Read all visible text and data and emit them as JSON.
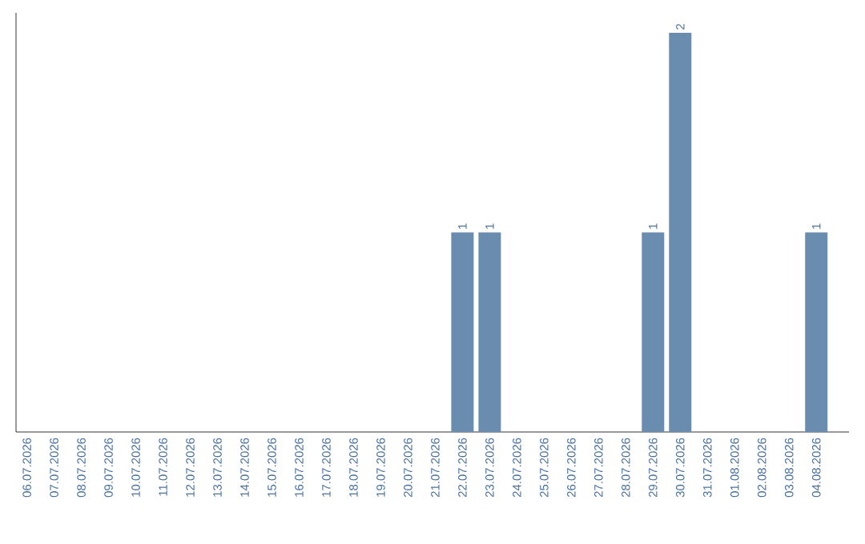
{
  "chart_data": {
    "type": "bar",
    "categories": [
      "06.07.2026",
      "07.07.2026",
      "08.07.2026",
      "09.07.2026",
      "10.07.2026",
      "11.07.2026",
      "12.07.2026",
      "13.07.2026",
      "14.07.2026",
      "15.07.2026",
      "16.07.2026",
      "17.07.2026",
      "18.07.2026",
      "19.07.2026",
      "20.07.2026",
      "21.07.2026",
      "22.07.2026",
      "23.07.2026",
      "24.07.2026",
      "25.07.2026",
      "26.07.2026",
      "27.07.2026",
      "28.07.2026",
      "29.07.2026",
      "30.07.2026",
      "31.07.2026",
      "01.08.2026",
      "02.08.2026",
      "03.08.2026",
      "04.08.2026"
    ],
    "values": [
      null,
      null,
      null,
      null,
      null,
      null,
      null,
      null,
      null,
      null,
      null,
      null,
      null,
      null,
      null,
      null,
      1,
      1,
      null,
      null,
      null,
      null,
      null,
      1,
      2,
      null,
      null,
      null,
      null,
      1
    ],
    "data_labels": true,
    "color": "#6a8caf"
  }
}
